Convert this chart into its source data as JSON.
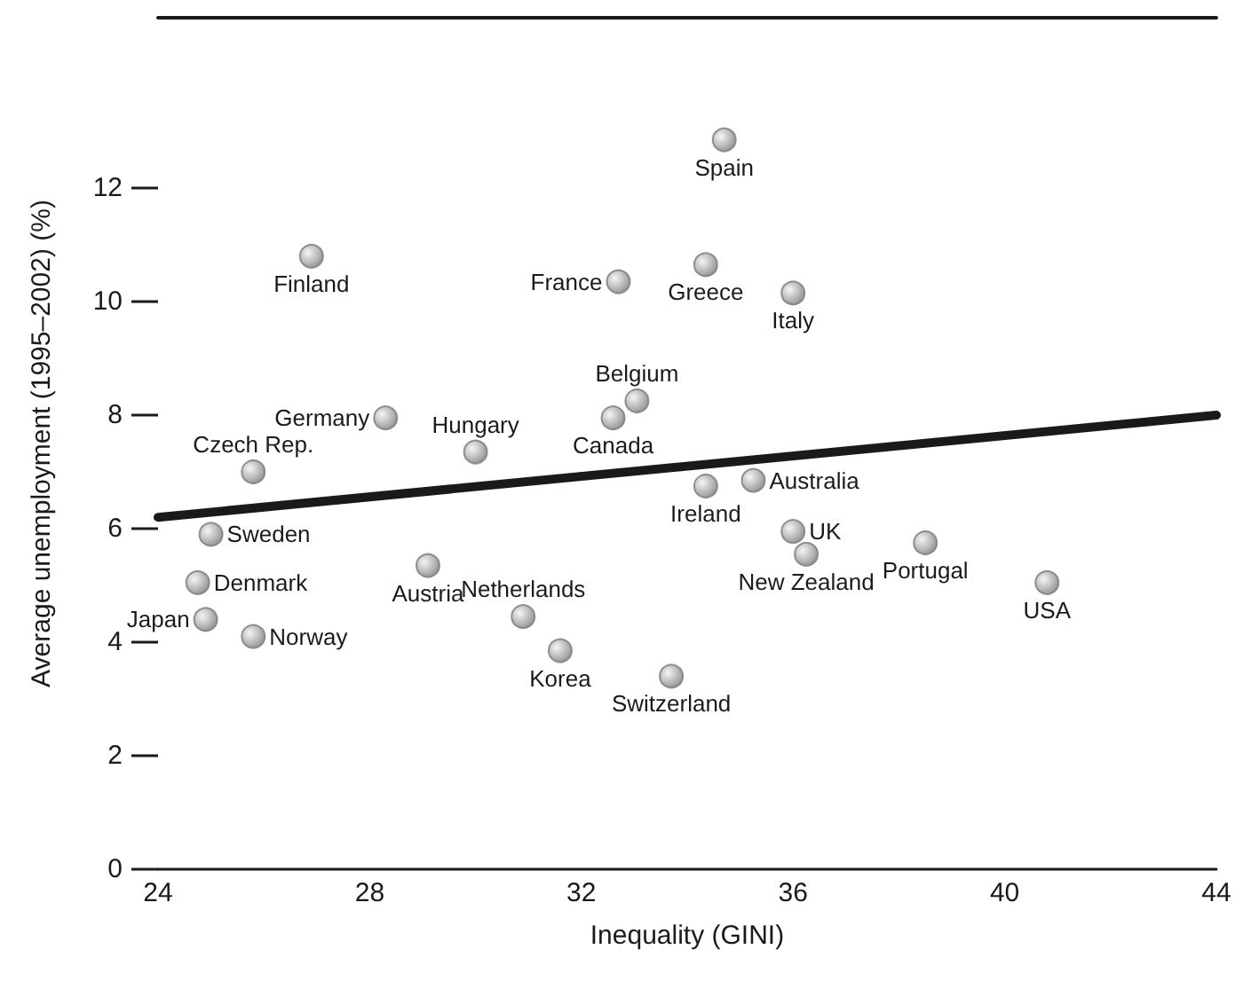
{
  "chart_data": {
    "type": "scatter",
    "xlabel": "Inequality (GINI)",
    "ylabel": "Average unemployment (1995–2002) (%)",
    "xlim": [
      24,
      44
    ],
    "xticks": [
      24,
      28,
      32,
      36,
      40,
      44
    ],
    "ylim": [
      0,
      15
    ],
    "yticks": [
      0,
      2,
      4,
      6,
      8,
      10,
      12
    ],
    "grid": false,
    "marker": "circle",
    "series": [
      {
        "color": "#7a7a7a",
        "x": [
          26.9,
          32.7,
          33.05,
          32.6,
          28.3,
          30.0,
          25.8,
          25.0,
          24.75,
          24.9,
          25.8,
          29.1,
          30.9,
          31.6,
          33.7,
          34.7,
          34.35,
          36.0,
          34.35,
          35.25,
          36.0,
          36.25,
          38.5,
          40.8
        ],
        "values": [
          10.8,
          10.35,
          8.25,
          7.95,
          7.95,
          7.35,
          7.0,
          5.9,
          5.05,
          4.4,
          4.1,
          5.35,
          4.45,
          3.85,
          3.4,
          12.85,
          10.65,
          10.15,
          6.75,
          6.85,
          5.95,
          5.55,
          5.75,
          5.05
        ]
      },
      {
        "type": "line",
        "marker": "none",
        "color": "#1a1a1a",
        "x": [
          24,
          44
        ],
        "values": [
          6.2,
          8.0
        ]
      }
    ],
    "annotations": [
      {
        "text": "Finland",
        "x": 26.9,
        "y": 10.8
      },
      {
        "text": "France",
        "x": 32.7,
        "y": 10.35
      },
      {
        "text": "Belgium",
        "x": 33.05,
        "y": 8.25
      },
      {
        "text": "Canada",
        "x": 32.6,
        "y": 7.95
      },
      {
        "text": "Germany",
        "x": 28.3,
        "y": 7.95
      },
      {
        "text": "Hungary",
        "x": 30.0,
        "y": 7.35
      },
      {
        "text": "Czech Rep.",
        "x": 25.8,
        "y": 7.0
      },
      {
        "text": "Sweden",
        "x": 25.0,
        "y": 5.9
      },
      {
        "text": "Denmark",
        "x": 24.75,
        "y": 5.05
      },
      {
        "text": "Japan",
        "x": 24.9,
        "y": 4.4
      },
      {
        "text": "Norway",
        "x": 25.8,
        "y": 4.1
      },
      {
        "text": "Austria",
        "x": 29.1,
        "y": 5.35
      },
      {
        "text": "Netherlands",
        "x": 30.9,
        "y": 4.45
      },
      {
        "text": "Korea",
        "x": 31.6,
        "y": 3.85
      },
      {
        "text": "Switzerland",
        "x": 33.7,
        "y": 3.4
      },
      {
        "text": "Spain",
        "x": 34.7,
        "y": 12.85
      },
      {
        "text": "Greece",
        "x": 34.35,
        "y": 10.65
      },
      {
        "text": "Italy",
        "x": 36.0,
        "y": 10.15
      },
      {
        "text": "Ireland",
        "x": 34.35,
        "y": 6.75
      },
      {
        "text": "Australia",
        "x": 35.25,
        "y": 6.85
      },
      {
        "text": "UK",
        "x": 36.0,
        "y": 5.95
      },
      {
        "text": "New Zealand",
        "x": 36.25,
        "y": 5.55
      },
      {
        "text": "Portugal",
        "x": 38.5,
        "y": 5.75
      },
      {
        "text": "USA",
        "x": 40.8,
        "y": 5.05
      }
    ]
  }
}
